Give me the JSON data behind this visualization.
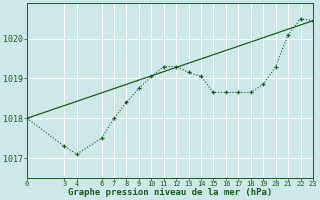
{
  "title": "Graphe pression niveau de la mer (hPa)",
  "bg_color": "#cce8e8",
  "grid_color": "#ffffff",
  "line_color": "#1a5c1a",
  "x_ticks": [
    0,
    3,
    4,
    6,
    7,
    8,
    9,
    10,
    11,
    12,
    13,
    14,
    15,
    16,
    17,
    18,
    19,
    20,
    21,
    22,
    23
  ],
  "x_data": [
    0,
    3,
    4,
    6,
    7,
    8,
    9,
    10,
    11,
    12,
    13,
    14,
    15,
    16,
    17,
    18,
    19,
    20,
    21,
    22,
    23
  ],
  "y_data": [
    1018.0,
    1017.3,
    1017.1,
    1017.5,
    1018.0,
    1018.4,
    1018.75,
    1019.05,
    1019.3,
    1019.3,
    1019.15,
    1019.05,
    1018.65,
    1018.65,
    1018.65,
    1018.65,
    1018.85,
    1019.3,
    1020.1,
    1020.5,
    1020.45
  ],
  "trend_x": [
    0,
    23
  ],
  "trend_y": [
    1018.0,
    1020.45
  ],
  "ylim": [
    1016.5,
    1020.9
  ],
  "xlim": [
    0,
    23
  ],
  "yticks": [
    1017,
    1018,
    1019,
    1020
  ],
  "title_fontsize": 6.5
}
